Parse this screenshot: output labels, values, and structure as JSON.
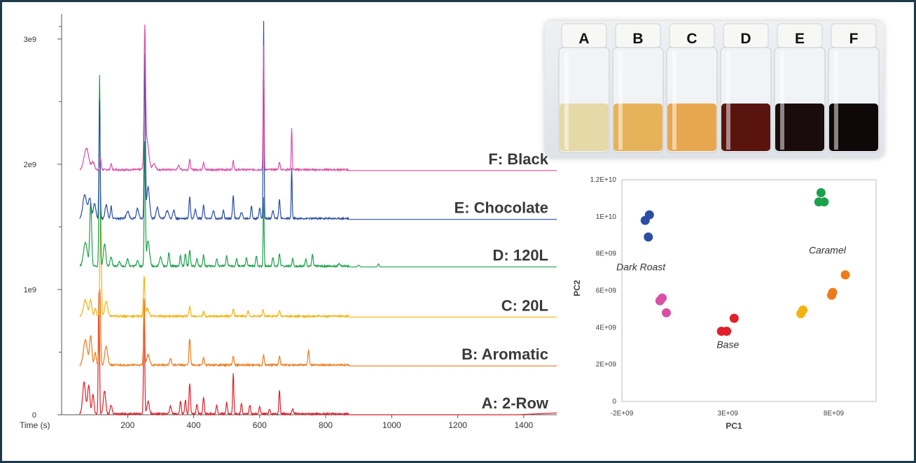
{
  "colors": {
    "frame": "#1e3a4a",
    "F": "#d94fa6",
    "E": "#2b4ea3",
    "D": "#1ca14b",
    "C": "#f3b40f",
    "B": "#ef7a1a",
    "A": "#e0202a"
  },
  "chart_data": [
    {
      "type": "line",
      "xlabel": "Time (s)",
      "ylabel": "",
      "xlim": [
        0,
        1500
      ],
      "ylim": [
        0,
        3200000000
      ],
      "x_ticks": [
        200,
        400,
        600,
        800,
        1000,
        1200,
        1400
      ],
      "x_tick_labels": [
        "200",
        "400",
        "600",
        "800",
        "1000",
        "1200",
        "1400"
      ],
      "y_ticks": [
        0,
        1000000000,
        2000000000,
        3000000000
      ],
      "y_tick_labels": [
        "0",
        "1e9",
        "2e9",
        "3e9"
      ],
      "grid": false,
      "series": [
        {
          "key": "F",
          "name": "F: Black",
          "baseline": 1950000000,
          "color": "#d94fa6",
          "peaks": [
            [
              75,
              170000000,
              10
            ],
            [
              95,
              60000000,
              6
            ],
            [
              118,
              90000000,
              3
            ],
            [
              150,
              45000000,
              3
            ],
            [
              252,
              1020000000,
              3
            ],
            [
              258,
              250000000,
              8
            ],
            [
              280,
              50000000,
              6
            ],
            [
              355,
              35000000,
              4
            ],
            [
              388,
              80000000,
              3
            ],
            [
              430,
              60000000,
              3
            ],
            [
              520,
              70000000,
              3
            ],
            [
              612,
              1000000000,
              2
            ],
            [
              660,
              60000000,
              3
            ],
            [
              697,
              330000000,
              2
            ]
          ]
        },
        {
          "key": "E",
          "name": "E: Chocolate",
          "baseline": 1560000000,
          "color": "#2b4ea3",
          "peaks": [
            [
              70,
              190000000,
              8
            ],
            [
              85,
              160000000,
              6
            ],
            [
              100,
              120000000,
              5
            ],
            [
              115,
              950000000,
              2.5
            ],
            [
              135,
              110000000,
              5
            ],
            [
              150,
              100000000,
              3
            ],
            [
              200,
              60000000,
              6
            ],
            [
              230,
              80000000,
              5
            ],
            [
              252,
              1300000000,
              2.5
            ],
            [
              262,
              250000000,
              6
            ],
            [
              290,
              90000000,
              5
            ],
            [
              320,
              60000000,
              6
            ],
            [
              340,
              70000000,
              4
            ],
            [
              388,
              170000000,
              3
            ],
            [
              405,
              70000000,
              4
            ],
            [
              430,
              110000000,
              3
            ],
            [
              460,
              60000000,
              4
            ],
            [
              490,
              70000000,
              3
            ],
            [
              520,
              180000000,
              3
            ],
            [
              545,
              50000000,
              4
            ],
            [
              575,
              100000000,
              3
            ],
            [
              600,
              90000000,
              3
            ],
            [
              612,
              1580000000,
              1.8
            ],
            [
              640,
              60000000,
              4
            ],
            [
              660,
              150000000,
              3
            ],
            [
              697,
              400000000,
              2
            ]
          ]
        },
        {
          "key": "D",
          "name": "D: 120L",
          "baseline": 1180000000,
          "color": "#1ca14b",
          "peaks": [
            [
              72,
              190000000,
              8
            ],
            [
              88,
              500000000,
              4
            ],
            [
              115,
              1530000000,
              2.5
            ],
            [
              130,
              180000000,
              5
            ],
            [
              150,
              70000000,
              4
            ],
            [
              175,
              40000000,
              4
            ],
            [
              200,
              60000000,
              4
            ],
            [
              230,
              50000000,
              4
            ],
            [
              252,
              990000000,
              2.5
            ],
            [
              262,
              200000000,
              6
            ],
            [
              300,
              70000000,
              5
            ],
            [
              325,
              110000000,
              3
            ],
            [
              360,
              80000000,
              3
            ],
            [
              375,
              100000000,
              3
            ],
            [
              388,
              130000000,
              3
            ],
            [
              410,
              60000000,
              3
            ],
            [
              430,
              90000000,
              3
            ],
            [
              470,
              60000000,
              3
            ],
            [
              500,
              80000000,
              3
            ],
            [
              530,
              60000000,
              3
            ],
            [
              560,
              70000000,
              3
            ],
            [
              590,
              80000000,
              3
            ],
            [
              612,
              550000000,
              2
            ],
            [
              640,
              70000000,
              3
            ],
            [
              660,
              100000000,
              3
            ],
            [
              700,
              60000000,
              3
            ],
            [
              740,
              60000000,
              3
            ],
            [
              760,
              90000000,
              3
            ],
            [
              840,
              20000000,
              4
            ],
            [
              900,
              15000000,
              4
            ],
            [
              960,
              25000000,
              3
            ]
          ]
        },
        {
          "key": "C",
          "name": "C: 20L",
          "baseline": 780000000,
          "color": "#f3b40f",
          "peaks": [
            [
              72,
              130000000,
              8
            ],
            [
              88,
              130000000,
              5
            ],
            [
              102,
              60000000,
              4
            ],
            [
              118,
              870000000,
              3
            ],
            [
              135,
              120000000,
              6
            ],
            [
              250,
              320000000,
              3
            ],
            [
              260,
              60000000,
              6
            ],
            [
              388,
              80000000,
              3
            ],
            [
              430,
              40000000,
              3
            ],
            [
              520,
              60000000,
              3
            ],
            [
              565,
              40000000,
              3
            ],
            [
              610,
              50000000,
              3
            ],
            [
              660,
              50000000,
              3
            ]
          ]
        },
        {
          "key": "B",
          "name": "B: Aromatic",
          "baseline": 390000000,
          "color": "#ef7a1a",
          "peaks": [
            [
              72,
              200000000,
              8
            ],
            [
              88,
              230000000,
              5
            ],
            [
              102,
              100000000,
              4
            ],
            [
              116,
              610000000,
              3
            ],
            [
              135,
              150000000,
              6
            ],
            [
              250,
              530000000,
              2.5
            ],
            [
              262,
              80000000,
              6
            ],
            [
              330,
              50000000,
              4
            ],
            [
              388,
              210000000,
              3
            ],
            [
              430,
              60000000,
              3
            ],
            [
              520,
              70000000,
              3
            ],
            [
              612,
              80000000,
              3
            ],
            [
              660,
              70000000,
              3
            ],
            [
              748,
              120000000,
              3
            ]
          ]
        },
        {
          "key": "A",
          "name": "A: 2-Row",
          "baseline": 0,
          "color": "#e0202a",
          "peaks": [
            [
              68,
              250000000,
              6
            ],
            [
              82,
              230000000,
              5
            ],
            [
              95,
              160000000,
              4
            ],
            [
              113,
              980000000,
              2.5
            ],
            [
              130,
              180000000,
              5
            ],
            [
              150,
              70000000,
              4
            ],
            [
              250,
              860000000,
              2.5
            ],
            [
              262,
              100000000,
              5
            ],
            [
              330,
              60000000,
              4
            ],
            [
              360,
              100000000,
              3
            ],
            [
              375,
              110000000,
              3
            ],
            [
              388,
              240000000,
              3
            ],
            [
              410,
              80000000,
              3
            ],
            [
              430,
              130000000,
              3
            ],
            [
              470,
              70000000,
              3
            ],
            [
              500,
              90000000,
              3
            ],
            [
              520,
              320000000,
              2.5
            ],
            [
              545,
              80000000,
              3
            ],
            [
              570,
              70000000,
              3
            ],
            [
              600,
              60000000,
              3
            ],
            [
              630,
              40000000,
              3
            ],
            [
              660,
              190000000,
              2.5
            ],
            [
              700,
              40000000,
              3
            ]
          ]
        }
      ]
    },
    {
      "type": "scatter",
      "xlabel": "PC1",
      "ylabel": "PC2",
      "xlim": [
        -2000000000,
        10000000000
      ],
      "ylim": [
        0,
        12000000000
      ],
      "x_ticks": [
        -2000000000,
        3000000000,
        8000000000
      ],
      "x_tick_labels": [
        "-2E+09",
        "3E+09",
        "8E+09"
      ],
      "y_ticks": [
        0,
        2000000000,
        4000000000,
        6000000000,
        8000000000,
        10000000000,
        12000000000
      ],
      "y_tick_labels": [
        "0",
        "2E+09",
        "4E+09",
        "6E+09",
        "8E+09",
        "1E+10",
        "1.2E+10"
      ],
      "grid": false,
      "series": [
        {
          "key": "E",
          "color": "#2b4ea3",
          "points": [
            [
              -700000000,
              10100000000
            ],
            [
              -900000000,
              9800000000
            ],
            [
              -750000000,
              8900000000
            ]
          ]
        },
        {
          "key": "F",
          "color": "#d94fa6",
          "points": [
            [
              -100000000,
              5600000000
            ],
            [
              -200000000,
              5450000000
            ],
            [
              100000000,
              4800000000
            ]
          ]
        },
        {
          "key": "A",
          "color": "#e0202a",
          "points": [
            [
              3300000000,
              4500000000
            ],
            [
              2700000000,
              3800000000
            ],
            [
              2950000000,
              3800000000
            ]
          ]
        },
        {
          "key": "C",
          "color": "#f3b40f",
          "points": [
            [
              6550000000,
              4950000000
            ],
            [
              6450000000,
              4750000000
            ]
          ]
        },
        {
          "key": "B",
          "color": "#ef7a1a",
          "points": [
            [
              8550000000,
              6850000000
            ],
            [
              7950000000,
              5900000000
            ],
            [
              7900000000,
              5750000000
            ]
          ]
        },
        {
          "key": "D",
          "color": "#1ca14b",
          "points": [
            [
              7400000000,
              11300000000
            ],
            [
              7300000000,
              10800000000
            ],
            [
              7550000000,
              10800000000
            ]
          ]
        }
      ],
      "annotations": [
        {
          "text": "Dark Roast",
          "x": -1100000000,
          "y": 7100000000
        },
        {
          "text": "Base",
          "x": 3000000000,
          "y": 2900000000
        },
        {
          "text": "Caramel",
          "x": 7700000000,
          "y": 8000000000
        }
      ]
    }
  ],
  "photo": {
    "vials": [
      {
        "label": "A",
        "liquid": "#e6d9a8"
      },
      {
        "label": "B",
        "liquid": "#e6b25a"
      },
      {
        "label": "C",
        "liquid": "#e7a74e"
      },
      {
        "label": "D",
        "liquid": "#5a1410"
      },
      {
        "label": "E",
        "liquid": "#1a0c0c"
      },
      {
        "label": "F",
        "liquid": "#100808"
      }
    ]
  }
}
